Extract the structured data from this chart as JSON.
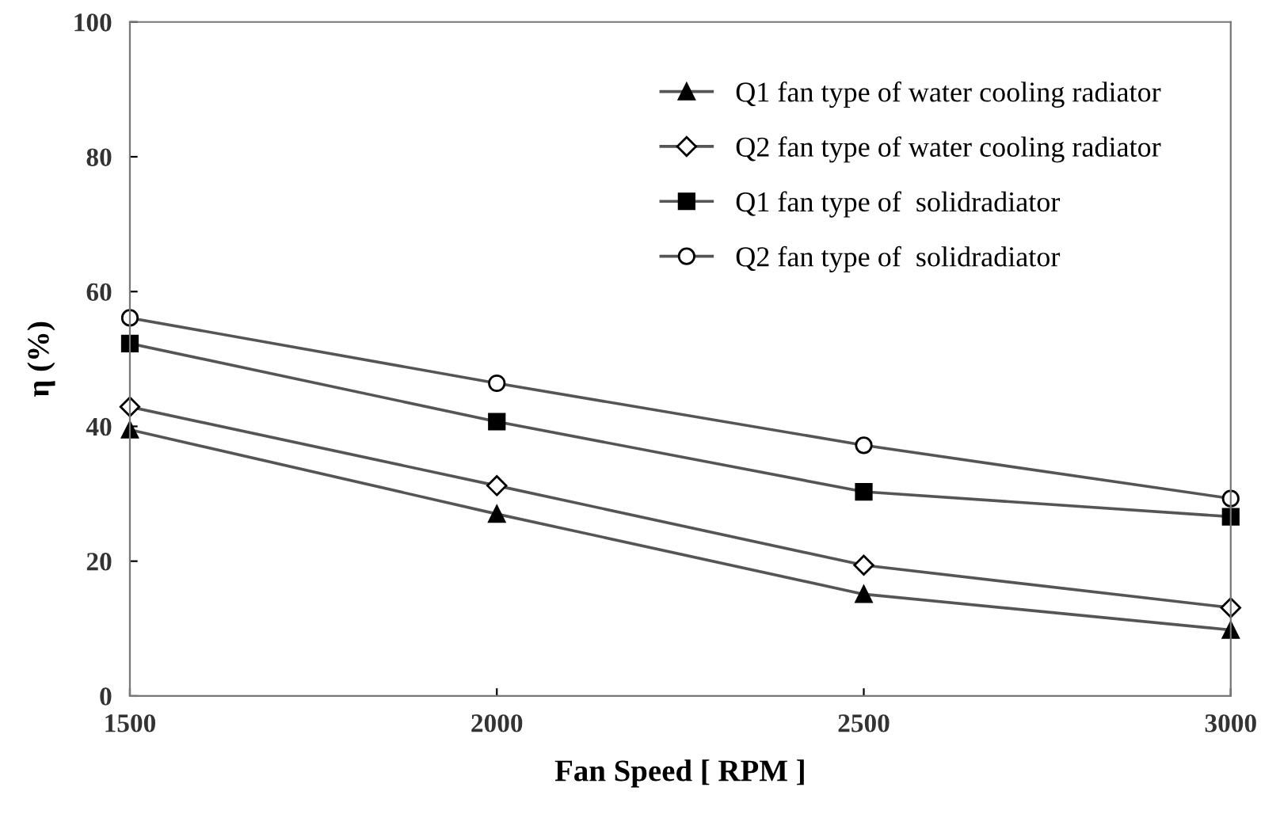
{
  "chart_data": {
    "type": "line",
    "xlabel": "Fan Speed [ RPM ]",
    "ylabel": "η (%)",
    "x": [
      1500,
      2000,
      2500,
      3000
    ],
    "xlim": [
      1500,
      3000
    ],
    "xticks": [
      1500,
      2000,
      2500,
      3000
    ],
    "ylim": [
      0,
      100
    ],
    "yticks": [
      0,
      20,
      40,
      60,
      80,
      100
    ],
    "grid": false,
    "legend": "top right",
    "series": [
      {
        "name": "Q1 fan type of water cooling radiator",
        "color": "#000000",
        "marker": "triangle",
        "values": [
          39.5,
          27,
          15.1,
          9.8
        ]
      },
      {
        "name": "Q2 fan type of water cooling radiator",
        "color": "#000000",
        "marker": "diamond",
        "values": [
          42.9,
          31.2,
          19.4,
          13.1
        ]
      },
      {
        "name": "Q1 fan type of  solidradiator",
        "color": "#000000",
        "marker": "square",
        "values": [
          52.3,
          40.7,
          30.3,
          26.6
        ]
      },
      {
        "name": "Q2 fan type of  solidradiator",
        "color": "#000000",
        "marker": "circle",
        "values": [
          56.1,
          46.4,
          37.2,
          29.3
        ]
      }
    ]
  }
}
